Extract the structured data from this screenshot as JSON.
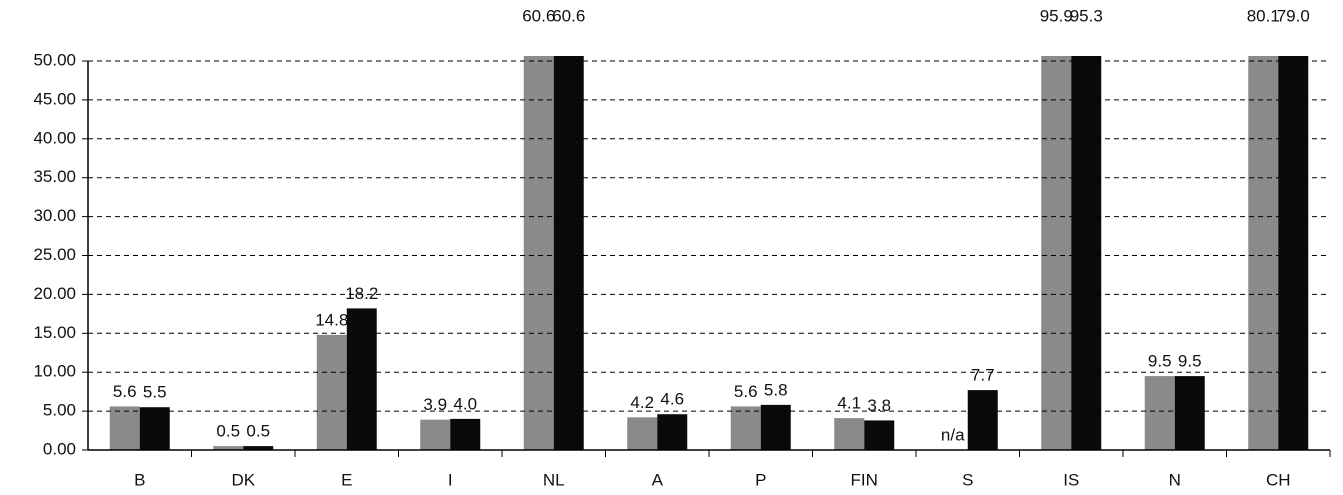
{
  "chart_data": {
    "type": "bar",
    "categories": [
      "B",
      "DK",
      "E",
      "I",
      "NL",
      "A",
      "P",
      "FIN",
      "S",
      "IS",
      "N",
      "CH"
    ],
    "series": [
      {
        "color": "#8a8a8a",
        "values": [
          5.6,
          0.5,
          14.8,
          3.9,
          60.6,
          4.2,
          5.6,
          4.1,
          null,
          95.9,
          9.5,
          80.1
        ],
        "value_labels": [
          "5.6",
          "0.5",
          "14.8",
          "3.9",
          "60.6",
          "4.2",
          "5.6",
          "4.1",
          "n/a",
          "95.9",
          "9.5",
          "80.1"
        ]
      },
      {
        "color": "#0a0a0a",
        "values": [
          5.5,
          0.5,
          18.2,
          4.0,
          60.6,
          4.6,
          5.8,
          3.8,
          7.7,
          95.3,
          9.5,
          79.0
        ],
        "value_labels": [
          "5.5",
          "0.5",
          "18.2",
          "4.0",
          "60.6",
          "4.6",
          "5.8",
          "3.8",
          "7.7",
          "95.3",
          "9.5",
          "79.0"
        ]
      }
    ],
    "ylim": [
      0,
      50
    ],
    "yticks": [
      {
        "value": 0,
        "label": "0.00"
      },
      {
        "value": 5,
        "label": "5.00"
      },
      {
        "value": 10,
        "label": "10.00"
      },
      {
        "value": 15,
        "label": "15.00"
      },
      {
        "value": 20,
        "label": "20.00"
      },
      {
        "value": 25,
        "label": "25.00"
      },
      {
        "value": 30,
        "label": "30.00"
      },
      {
        "value": 35,
        "label": "35.00"
      },
      {
        "value": 40,
        "label": "40.00"
      },
      {
        "value": 45,
        "label": "45.00"
      },
      {
        "value": 50,
        "label": "50.00"
      }
    ],
    "grid": true
  }
}
